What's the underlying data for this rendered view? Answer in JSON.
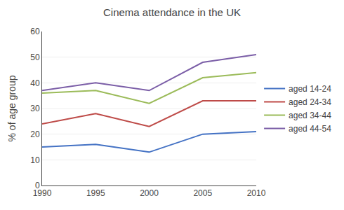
{
  "chart_data": {
    "type": "line",
    "title": "Cinema attendance in the UK",
    "ylabel": "% of age group",
    "x": [
      1990,
      1995,
      2000,
      2005,
      2010
    ],
    "series": [
      {
        "name": "aged 14-24",
        "color": "#4472C4",
        "values": [
          15,
          16,
          13,
          20,
          21
        ]
      },
      {
        "name": "aged 24-34",
        "color": "#BE4B48",
        "values": [
          24,
          28,
          23,
          33,
          33
        ]
      },
      {
        "name": "aged 34-44",
        "color": "#9BBB59",
        "values": [
          36,
          37,
          32,
          42,
          44
        ]
      },
      {
        "name": "aged 44-54",
        "color": "#7B5EA7",
        "values": [
          37,
          40,
          37,
          48,
          51
        ]
      }
    ],
    "xlim": [
      1990,
      2010
    ],
    "xticks": [
      1990,
      1995,
      2000,
      2005,
      2010
    ],
    "ylim": [
      0,
      60
    ],
    "yticks": [
      0,
      10,
      20,
      30,
      40,
      50,
      60
    ],
    "grid": true,
    "legend": "right"
  }
}
